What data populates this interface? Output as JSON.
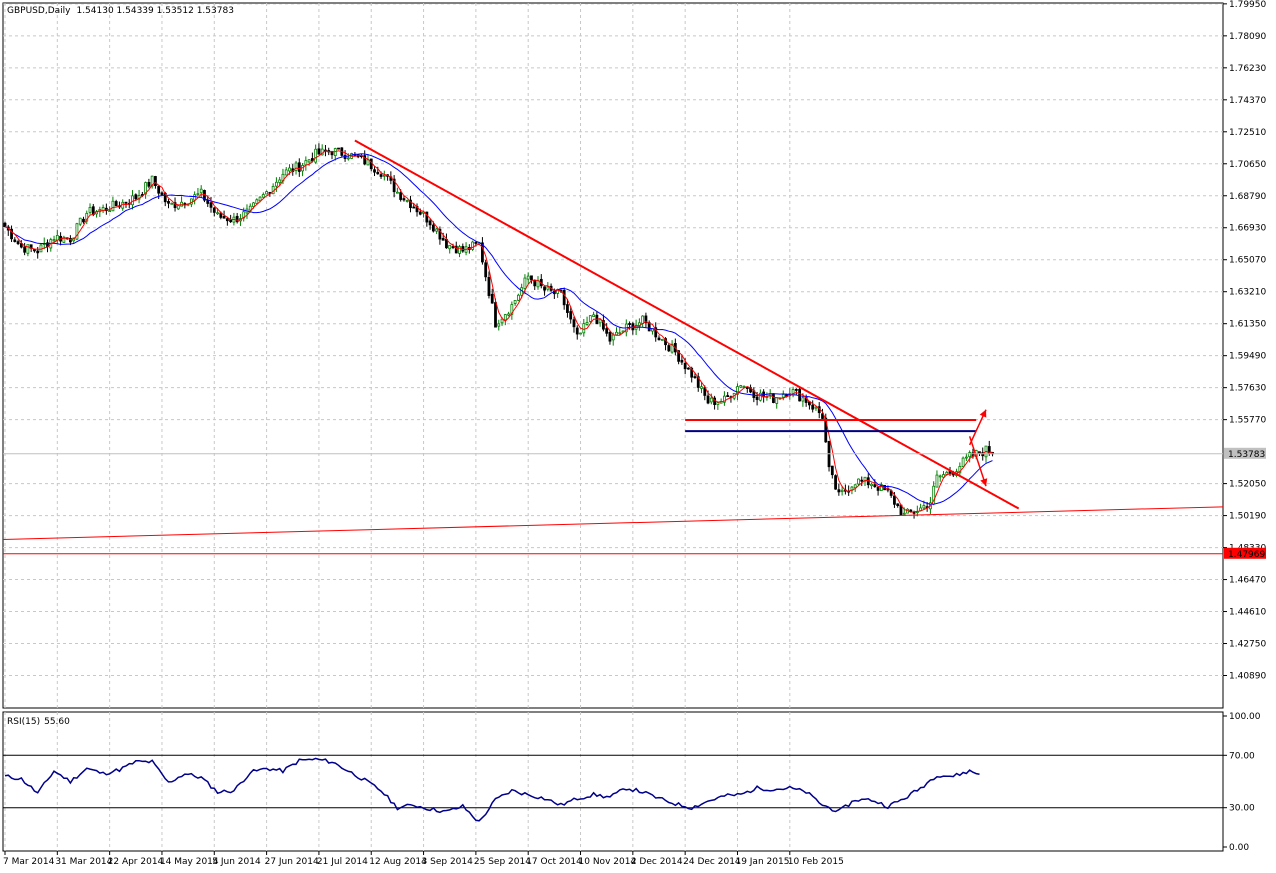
{
  "header": {
    "symbol": "GBPUSD",
    "timeframe": "Daily",
    "ohlc": "1.54130 1.54339 1.53512 1.53783"
  },
  "rsi_header": {
    "name": "RSI(15)",
    "value": "55.60"
  },
  "colors": {
    "bull": "#008000",
    "bear": "#000000",
    "ma_fast": "#ff0000",
    "ma_slow": "#0000ff",
    "trendline": "#ff0000",
    "support": "#ff0000",
    "resistance_blue": "#000080",
    "rsi_line": "#00008b",
    "grid": "#c8c8c8"
  },
  "chart_data": [
    {
      "type": "candlestick",
      "title": "GBPUSD,Daily",
      "ylim": [
        1.39,
        1.8
      ],
      "y_ticks": [
        "1.79950",
        "1.78090",
        "1.76230",
        "1.74370",
        "1.72510",
        "1.70650",
        "1.68790",
        "1.66930",
        "1.65070",
        "1.63210",
        "1.61350",
        "1.59490",
        "1.57630",
        "1.55770",
        "1.52050",
        "1.50190",
        "1.48330",
        "1.46470",
        "1.44610",
        "1.42750",
        "1.40890"
      ],
      "x_ticks": [
        "7 Mar 2014",
        "31 Mar 2014",
        "22 Apr 2014",
        "14 May 2014",
        "5 Jun 2014",
        "27 Jun 2014",
        "21 Jul 2014",
        "12 Aug 2014",
        "3 Sep 2014",
        "25 Sep 2014",
        "17 Oct 2014",
        "10 Nov 2014",
        "2 Dec 2014",
        "24 Dec 2014",
        "19 Jan 2015",
        "10 Feb 2015"
      ],
      "current_price": "1.53783",
      "red_marker_price": "1.47969",
      "close_path": [
        [
          0,
          1.67
        ],
        [
          5,
          1.658
        ],
        [
          10,
          1.656
        ],
        [
          15,
          1.664
        ],
        [
          20,
          1.663
        ],
        [
          25,
          1.678
        ],
        [
          30,
          1.68
        ],
        [
          35,
          1.683
        ],
        [
          40,
          1.687
        ],
        [
          45,
          1.697
        ],
        [
          50,
          1.682
        ],
        [
          55,
          1.685
        ],
        [
          60,
          1.689
        ],
        [
          65,
          1.676
        ],
        [
          70,
          1.674
        ],
        [
          75,
          1.679
        ],
        [
          80,
          1.69
        ],
        [
          85,
          1.701
        ],
        [
          90,
          1.705
        ],
        [
          95,
          1.712
        ],
        [
          100,
          1.714
        ],
        [
          105,
          1.712
        ],
        [
          110,
          1.708
        ],
        [
          115,
          1.702
        ],
        [
          120,
          1.69
        ],
        [
          125,
          1.682
        ],
        [
          130,
          1.673
        ],
        [
          135,
          1.66
        ],
        [
          140,
          1.656
        ],
        [
          145,
          1.66
        ],
        [
          150,
          1.614
        ],
        [
          155,
          1.624
        ],
        [
          160,
          1.641
        ],
        [
          165,
          1.633
        ],
        [
          170,
          1.63
        ],
        [
          175,
          1.605
        ],
        [
          180,
          1.619
        ],
        [
          185,
          1.604
        ],
        [
          190,
          1.611
        ],
        [
          195,
          1.615
        ],
        [
          200,
          1.606
        ],
        [
          205,
          1.597
        ],
        [
          210,
          1.584
        ],
        [
          215,
          1.568
        ],
        [
          220,
          1.569
        ],
        [
          225,
          1.579
        ],
        [
          230,
          1.572
        ],
        [
          235,
          1.57
        ],
        [
          240,
          1.575
        ],
        [
          245,
          1.569
        ],
        [
          250,
          1.56
        ],
        [
          252,
          1.528
        ],
        [
          255,
          1.513
        ],
        [
          260,
          1.522
        ],
        [
          265,
          1.521
        ],
        [
          270,
          1.515
        ],
        [
          275,
          1.502
        ],
        [
          280,
          1.506
        ],
        [
          283,
          1.51
        ],
        [
          285,
          1.524
        ],
        [
          290,
          1.528
        ],
        [
          295,
          1.536
        ],
        [
          300,
          1.54
        ],
        [
          302,
          1.5378
        ]
      ],
      "annotations": {
        "trendline": [
          [
            107,
            1.72
          ],
          [
            310,
            1.506
          ]
        ],
        "support_line": [
          [
            0,
            1.488
          ],
          [
            358,
            1.507
          ]
        ],
        "resistance_red": [
          [
            208,
            1.5575
          ],
          [
            297,
            1.5575
          ]
        ],
        "resistance_blue": [
          [
            208,
            1.551
          ],
          [
            297,
            1.551
          ]
        ],
        "horizontal_red": 1.47969,
        "arrow_up": [
          [
            295,
            1.543
          ],
          [
            300,
            1.5635
          ]
        ],
        "arrow_down": [
          [
            295,
            1.548
          ],
          [
            300,
            1.519
          ]
        ]
      }
    },
    {
      "type": "line",
      "title": "RSI(15) 55.60",
      "ylim": [
        0,
        100
      ],
      "y_ticks": [
        "100.00",
        "70.00",
        "30.00",
        "0.00"
      ],
      "levels": [
        70,
        30
      ],
      "values": [
        [
          0,
          54
        ],
        [
          5,
          52
        ],
        [
          10,
          41
        ],
        [
          15,
          58
        ],
        [
          20,
          50
        ],
        [
          25,
          60
        ],
        [
          30,
          56
        ],
        [
          35,
          59
        ],
        [
          40,
          65
        ],
        [
          45,
          65
        ],
        [
          50,
          49
        ],
        [
          55,
          56
        ],
        [
          60,
          53
        ],
        [
          65,
          42
        ],
        [
          70,
          43
        ],
        [
          75,
          57
        ],
        [
          80,
          60
        ],
        [
          85,
          58
        ],
        [
          90,
          66
        ],
        [
          95,
          67
        ],
        [
          100,
          65
        ],
        [
          105,
          58
        ],
        [
          110,
          51
        ],
        [
          115,
          43
        ],
        [
          120,
          30
        ],
        [
          125,
          32
        ],
        [
          130,
          29
        ],
        [
          135,
          27
        ],
        [
          140,
          31
        ],
        [
          145,
          19
        ],
        [
          150,
          36
        ],
        [
          155,
          43
        ],
        [
          160,
          40
        ],
        [
          165,
          37
        ],
        [
          170,
          32
        ],
        [
          175,
          37
        ],
        [
          180,
          40
        ],
        [
          185,
          38
        ],
        [
          190,
          45
        ],
        [
          195,
          42
        ],
        [
          200,
          37
        ],
        [
          205,
          33
        ],
        [
          210,
          30
        ],
        [
          215,
          35
        ],
        [
          220,
          39
        ],
        [
          225,
          40
        ],
        [
          230,
          45
        ],
        [
          235,
          44
        ],
        [
          240,
          45
        ],
        [
          245,
          42
        ],
        [
          250,
          32
        ],
        [
          255,
          27
        ],
        [
          260,
          36
        ],
        [
          265,
          36
        ],
        [
          270,
          31
        ],
        [
          275,
          37
        ],
        [
          280,
          45
        ],
        [
          285,
          55
        ],
        [
          290,
          54
        ],
        [
          295,
          58
        ],
        [
          298,
          55.6
        ]
      ]
    }
  ]
}
